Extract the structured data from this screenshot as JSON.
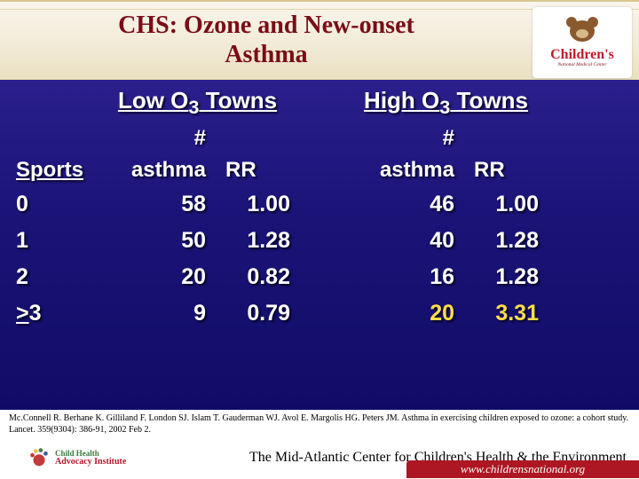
{
  "header": {
    "title_line1": "CHS: Ozone and New-onset",
    "title_line2": "Asthma",
    "logo_main": "Children's",
    "logo_sub": "National Medical Center"
  },
  "table": {
    "group_low": "Low O",
    "group_high": "High O",
    "sub3": "3",
    "towns": " Towns",
    "sports_label": "Sports",
    "hash": "#",
    "asthma_label": "asthma",
    "rr_label": "RR",
    "rows": [
      {
        "sports": "0",
        "low_ast": "58",
        "low_rr": "1.00",
        "high_ast": "46",
        "high_rr": "1.00",
        "hl": false
      },
      {
        "sports": "1",
        "low_ast": "50",
        "low_rr": "1.28",
        "high_ast": "40",
        "high_rr": "1.28",
        "hl": false
      },
      {
        "sports": "2",
        "low_ast": "20",
        "low_rr": "0.82",
        "high_ast": "16",
        "high_rr": "1.28",
        "hl": false
      },
      {
        "sports": ">3",
        "low_ast": "9",
        "low_rr": "0.79",
        "high_ast": "20",
        "high_rr": "3.31",
        "hl": true,
        "sports_prefix": "≥"
      }
    ]
  },
  "citation": "Mc.Connell R. Berhane K. Gilliland F. London SJ. Islam T. Gauderman WJ. Avol E. Margolis HG. Peters JM. Asthma in exercising children exposed to ozone: a cohort study. Lancet. 359(9304): 386-91, 2002 Feb 2.",
  "footer": {
    "adv1": "Child Health",
    "adv2": "Advocacy Institute",
    "center": "The Mid-Atlantic Center for Children's Health & the Environment",
    "url": "www.childrensnational.org"
  },
  "style": {
    "title_color": "#7a0c17",
    "slide_bg_top": "#2a1f8c",
    "slide_bg_bottom": "#100c66",
    "highlight_color": "#ffde4a",
    "text_color": "#ffffff",
    "url_bg": "#ad1723",
    "header_bg": "#f3ecd9",
    "font_size_data": 25,
    "font_size_header": 26
  }
}
